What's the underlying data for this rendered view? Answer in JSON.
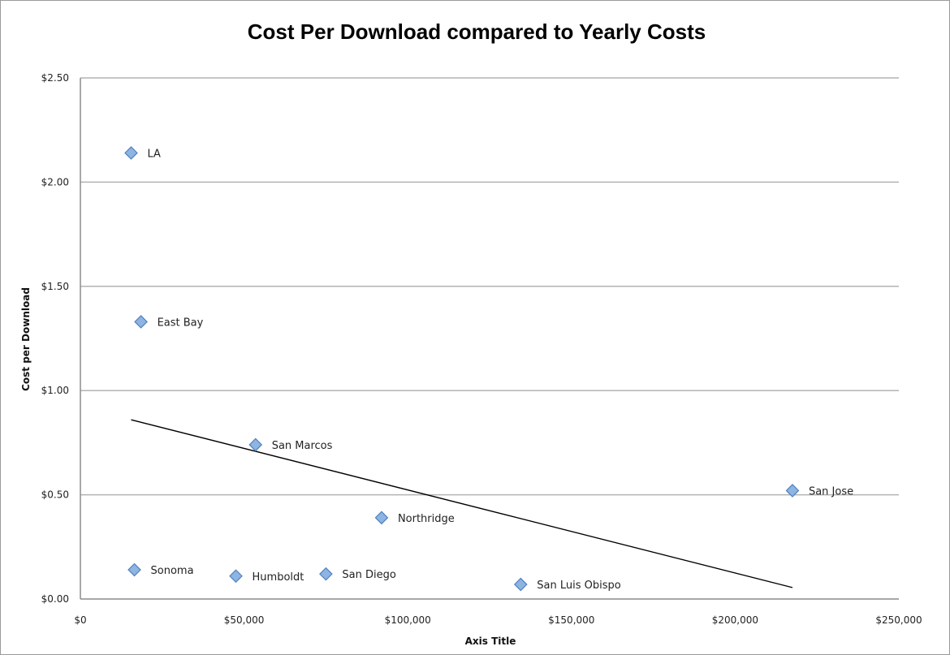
{
  "chart_data": {
    "type": "scatter",
    "title": "Cost Per Download compared to Yearly Costs",
    "xlabel": "Axis Title",
    "ylabel": "Cost per Download",
    "xlim": [
      0,
      250000
    ],
    "ylim": [
      0,
      2.5
    ],
    "x_ticks": [
      0,
      50000,
      100000,
      150000,
      200000,
      250000
    ],
    "x_tick_labels": [
      "$0",
      "$50,000",
      "$100,000",
      "$150,000",
      "$200,000",
      "$250,000"
    ],
    "y_ticks": [
      0,
      0.5,
      1.0,
      1.5,
      2.0,
      2.5
    ],
    "y_tick_labels": [
      "$0.00",
      "$0.50",
      "$1.00",
      "$1.50",
      "$2.00",
      "$2.50"
    ],
    "grid": "horizontal",
    "legend": "none",
    "marker_color": "#8db4e2",
    "marker_edge_color": "#4f81bd",
    "points": [
      {
        "label": "LA",
        "x": 15500,
        "y": 2.14
      },
      {
        "label": "East Bay",
        "x": 18500,
        "y": 1.33
      },
      {
        "label": "San Marcos",
        "x": 53500,
        "y": 0.74
      },
      {
        "label": "San Jose",
        "x": 217500,
        "y": 0.52
      },
      {
        "label": "Northridge",
        "x": 92000,
        "y": 0.39
      },
      {
        "label": "Sonoma",
        "x": 16500,
        "y": 0.14
      },
      {
        "label": "Humboldt",
        "x": 47500,
        "y": 0.11
      },
      {
        "label": "San Diego",
        "x": 75000,
        "y": 0.12
      },
      {
        "label": "San Luis Obispo",
        "x": 134500,
        "y": 0.07
      }
    ],
    "trendline": {
      "x": [
        15500,
        217500
      ],
      "y": [
        0.86,
        0.055
      ]
    }
  }
}
